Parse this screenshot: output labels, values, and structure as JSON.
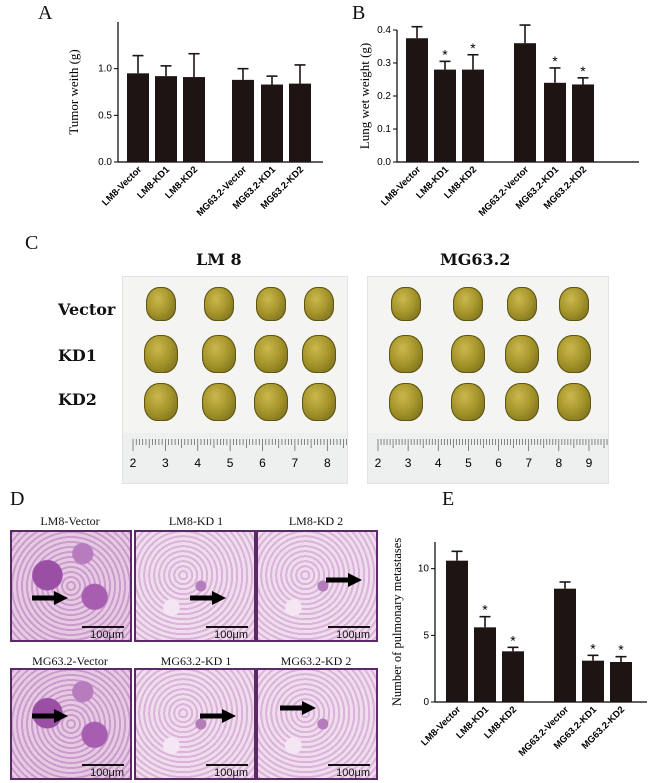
{
  "panels": {
    "a": "A",
    "b": "B",
    "c": "C",
    "d": "D",
    "e": "E"
  },
  "chart_data": [
    {
      "type": "bar",
      "panel": "A",
      "ylabel": "Tumor weith (g)",
      "categories": [
        "LM8-Vector",
        "LM8-KD1",
        "LM8-KD2",
        "MG63.2-Vector",
        "MG63.2-KD1",
        "MG63.2-KD2"
      ],
      "values": [
        0.95,
        0.92,
        0.91,
        0.88,
        0.83,
        0.84
      ],
      "errors": [
        0.19,
        0.11,
        0.25,
        0.12,
        0.09,
        0.2
      ],
      "significant": [
        false,
        false,
        false,
        false,
        false,
        false
      ],
      "ylim": [
        0,
        1.5
      ],
      "yticks": [
        "0.0",
        "0.5",
        "1.0"
      ]
    },
    {
      "type": "bar",
      "panel": "B",
      "ylabel": "Lung wet weight (g)",
      "categories": [
        "LM8-Vector",
        "LM8-KD1",
        "LM8-KD2",
        "MG63.2-Vector",
        "MG63.2-KD1",
        "MG63.2-KD2"
      ],
      "values": [
        0.375,
        0.28,
        0.28,
        0.36,
        0.24,
        0.235
      ],
      "errors": [
        0.035,
        0.025,
        0.045,
        0.055,
        0.045,
        0.02
      ],
      "significant": [
        false,
        true,
        true,
        false,
        true,
        true
      ],
      "ylim": [
        0,
        0.4
      ],
      "yticks": [
        "0.0",
        "0.1",
        "0.2",
        "0.3",
        "0.4"
      ]
    },
    {
      "type": "bar",
      "panel": "E",
      "ylabel": "Number of pulmonary metastases",
      "categories": [
        "LM8-Vector",
        "LM8-KD1",
        "LM8-KD2",
        "MG63.2-Vector",
        "MG63.2-KD1",
        "MG63.2-KD2"
      ],
      "values": [
        10.6,
        5.6,
        3.8,
        8.5,
        3.1,
        3.0
      ],
      "errors": [
        0.7,
        0.8,
        0.3,
        0.5,
        0.4,
        0.4
      ],
      "significant": [
        false,
        true,
        true,
        false,
        true,
        true
      ],
      "ylim": [
        0,
        12
      ],
      "yticks": [
        "0",
        "5",
        "10"
      ]
    }
  ],
  "star": "*",
  "panel_c": {
    "groups": [
      "LM 8",
      "MG63.2"
    ],
    "rows": [
      "Vector",
      "KD1",
      "KD2"
    ],
    "ruler_left": [
      "2",
      "3",
      "4",
      "5",
      "6",
      "7",
      "8"
    ],
    "ruler_right": [
      "2",
      "3",
      "4",
      "5",
      "6",
      "7",
      "8",
      "9"
    ]
  },
  "panel_d": {
    "titles": [
      "LM8-Vector",
      "LM8-KD 1",
      "LM8-KD 2",
      "MG63.2-Vector",
      "MG63.2-KD 1",
      "MG63.2-KD 2"
    ],
    "scale": "100",
    "unit": "μm"
  },
  "colors": {
    "bar": "#1f1414",
    "tissue": "#d9a8d4",
    "purple": "#7c3e8a"
  }
}
